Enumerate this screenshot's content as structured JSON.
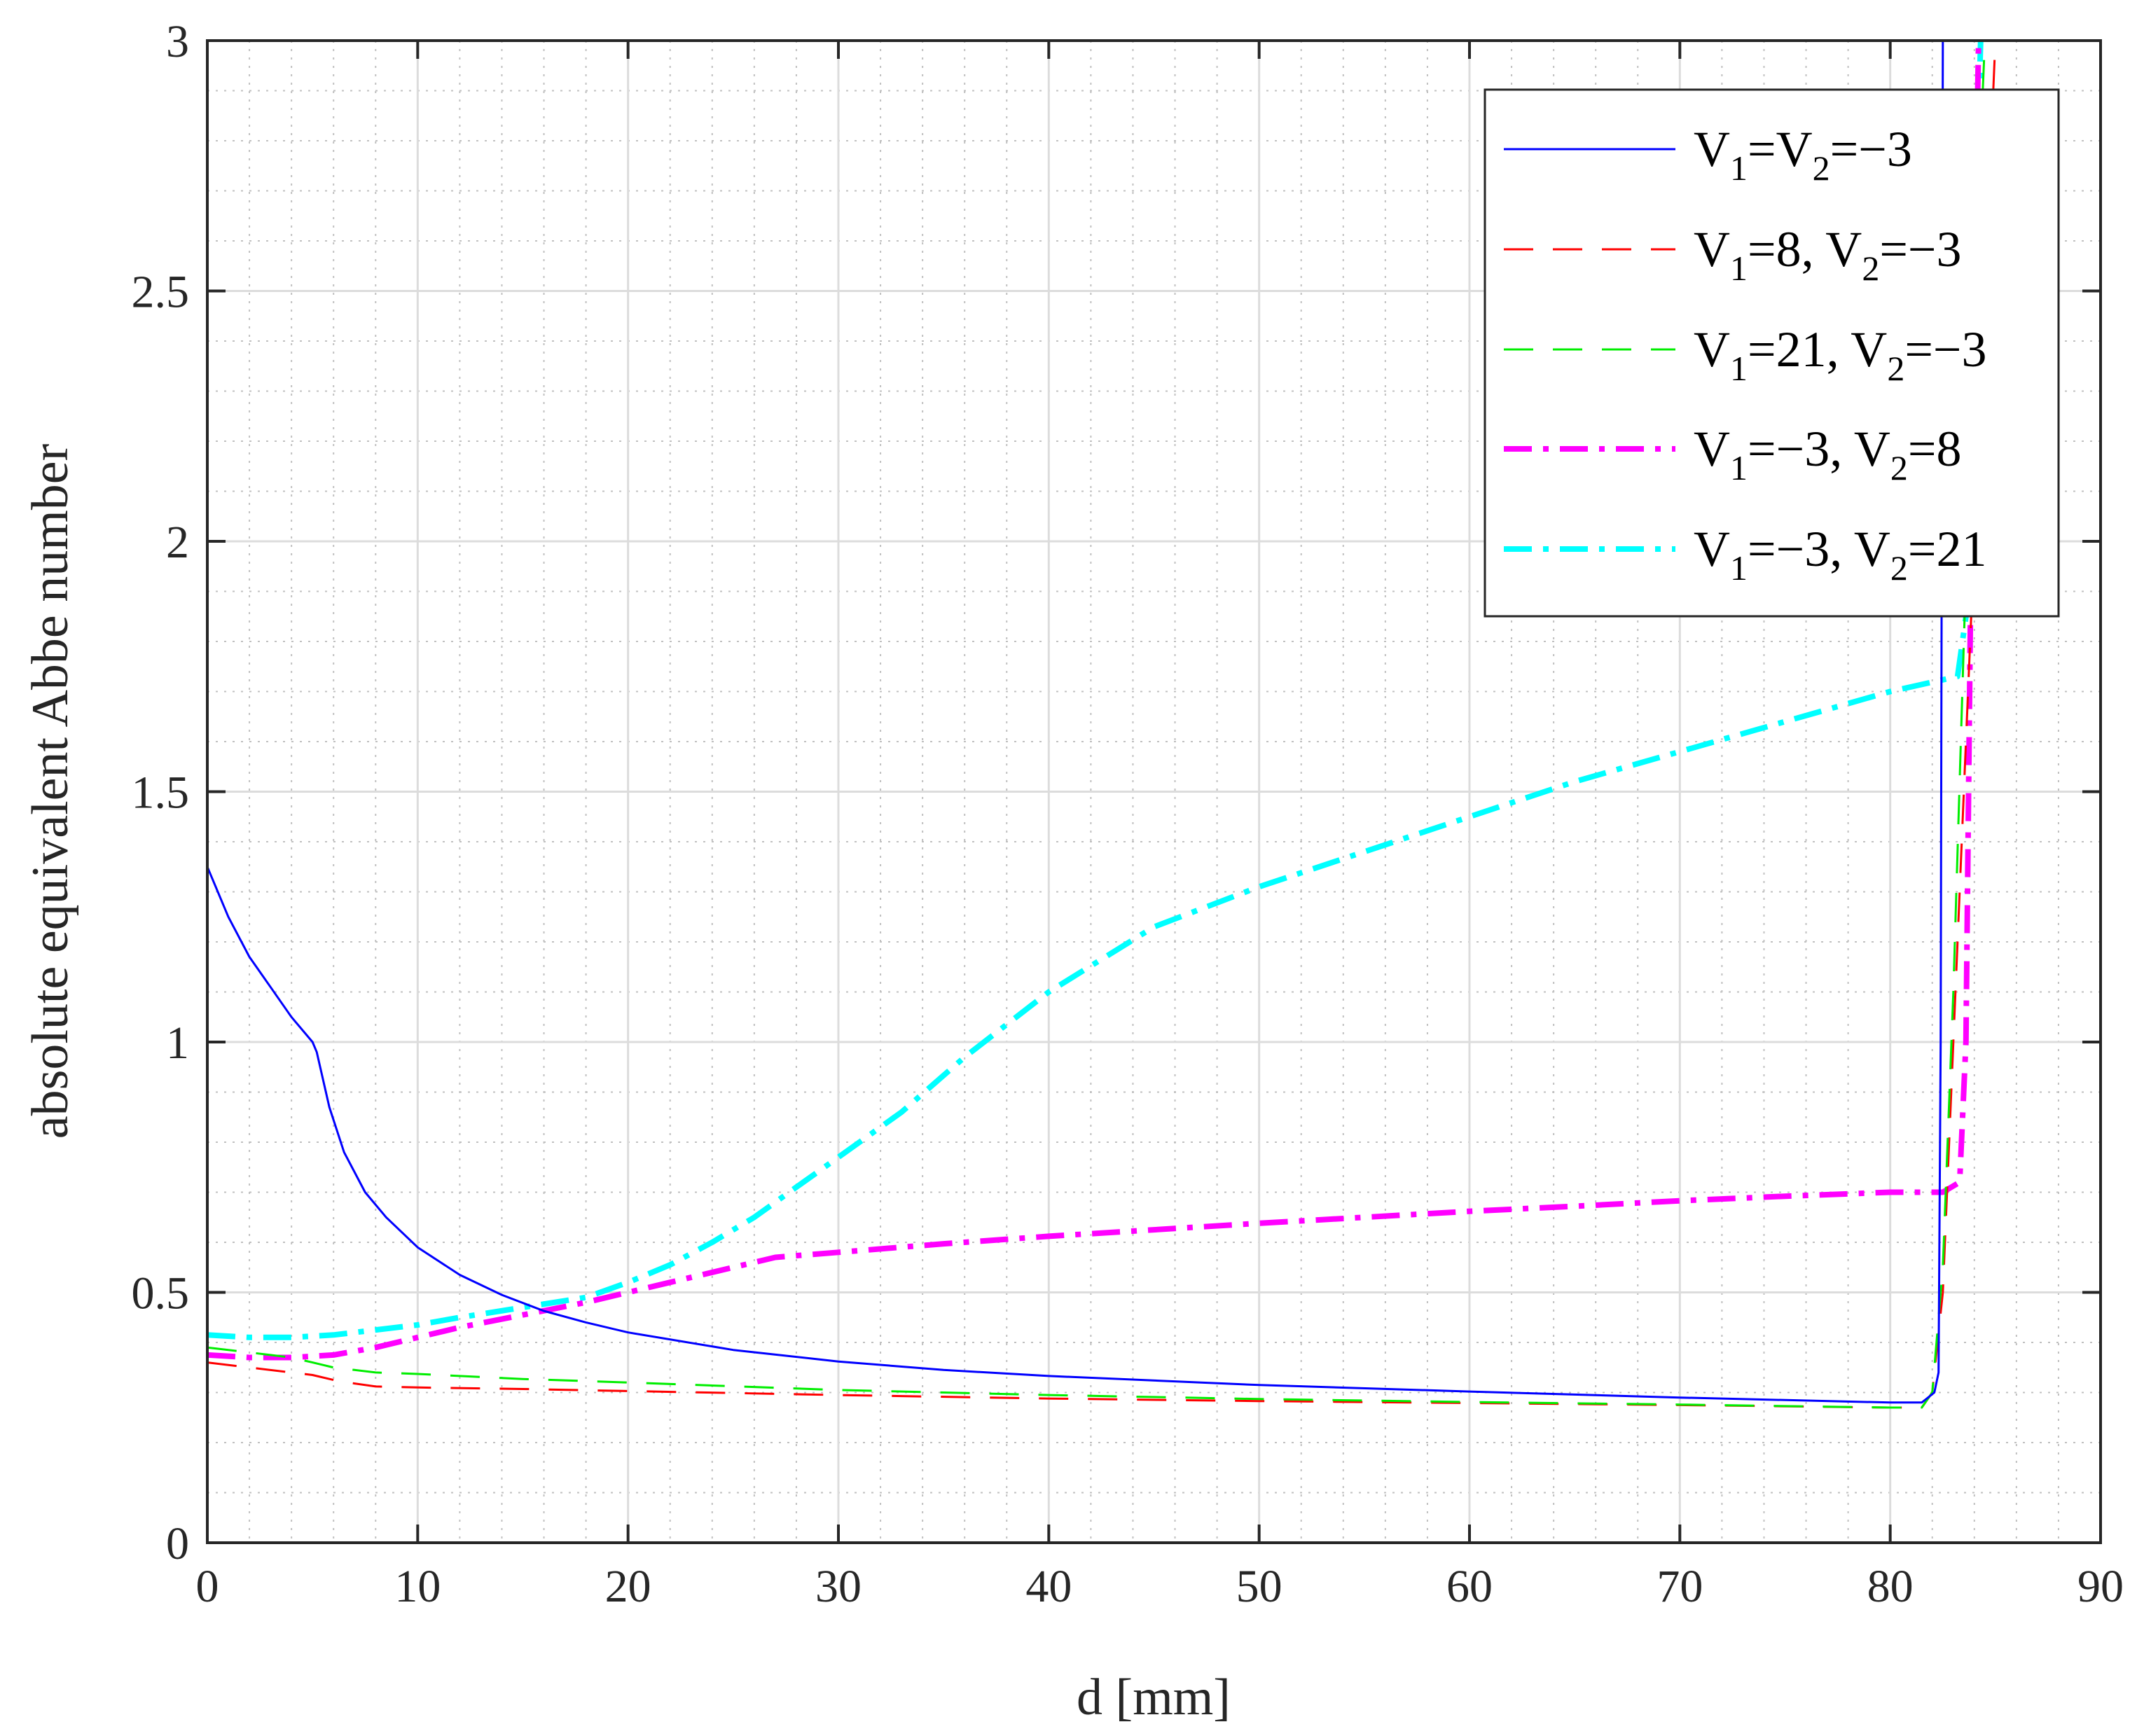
{
  "chart_data": {
    "type": "line",
    "xlabel": "d [mm]",
    "ylabel": "absolute equivalent Abbe number",
    "xlim": [
      0,
      90
    ],
    "ylim": [
      0,
      3
    ],
    "xticks": [
      "0",
      "10",
      "20",
      "30",
      "40",
      "50",
      "60",
      "70",
      "80",
      "90"
    ],
    "yticks": [
      "0",
      "0.5",
      "1",
      "1.5",
      "2",
      "2.5",
      "3"
    ],
    "grid": "major and minor",
    "legend_position": "top-right",
    "series": [
      {
        "name": "V1=V2=−3",
        "label_parts": [
          [
            "V",
            "1",
            "=V"
          ],
          [
            "",
            "2",
            "=−3"
          ]
        ],
        "color": "#0000ff",
        "style": "solid",
        "x": [
          0,
          1,
          2,
          3,
          4,
          5,
          5.2,
          5.8,
          6.5,
          7.5,
          8.5,
          10,
          12,
          14,
          16,
          18,
          20,
          25,
          30,
          35,
          40,
          50,
          60,
          70,
          80,
          81.5,
          82.1,
          82.3,
          82.4,
          82.5
        ],
        "y": [
          1.35,
          1.25,
          1.17,
          1.11,
          1.05,
          1.0,
          0.98,
          0.87,
          0.78,
          0.7,
          0.65,
          0.59,
          0.535,
          0.495,
          0.463,
          0.44,
          0.42,
          0.385,
          0.362,
          0.345,
          0.333,
          0.315,
          0.302,
          0.29,
          0.28,
          0.28,
          0.3,
          0.34,
          1.0,
          3.0
        ]
      },
      {
        "name": "V1=8, V2=−3",
        "label_parts": [
          [
            "V",
            "1",
            "=8, V"
          ],
          [
            "",
            "2",
            "=−3"
          ]
        ],
        "color": "#ff0000",
        "style": "dashed",
        "x": [
          0,
          2,
          4,
          5,
          6,
          7,
          8,
          10,
          15,
          20,
          30,
          40,
          50,
          60,
          70,
          80,
          81.5,
          82,
          82.5,
          83,
          83.5,
          84,
          84.5,
          85
        ],
        "y": [
          0.36,
          0.35,
          0.34,
          0.335,
          0.325,
          0.318,
          0.312,
          0.31,
          0.307,
          0.303,
          0.295,
          0.288,
          0.283,
          0.279,
          0.275,
          0.27,
          0.27,
          0.3,
          0.5,
          1.0,
          1.5,
          2.0,
          2.5,
          3.0
        ]
      },
      {
        "name": "V1=21, V2=−3",
        "label_parts": [
          [
            "V",
            "1",
            "=21, V"
          ],
          [
            "",
            "2",
            "=−3"
          ]
        ],
        "color": "#00ee00",
        "style": "dashed",
        "x": [
          0,
          2,
          4,
          5,
          6,
          7,
          8,
          10,
          15,
          20,
          30,
          40,
          50,
          60,
          70,
          80,
          81.5,
          82,
          82.5,
          83,
          83.5,
          84,
          84.5
        ],
        "y": [
          0.39,
          0.38,
          0.37,
          0.36,
          0.35,
          0.345,
          0.34,
          0.337,
          0.327,
          0.32,
          0.305,
          0.295,
          0.287,
          0.281,
          0.276,
          0.27,
          0.27,
          0.3,
          0.55,
          1.1,
          1.8,
          2.5,
          3.0
        ]
      },
      {
        "name": "V1=−3, V2=8",
        "label_parts": [
          [
            "V",
            "1",
            "=−3, V"
          ],
          [
            "",
            "2",
            "=8"
          ]
        ],
        "color": "#ff00ff",
        "style": "dashdot-thick",
        "x": [
          0,
          2,
          4,
          6,
          8,
          10,
          12,
          15,
          18,
          20,
          22,
          25,
          27,
          30,
          35,
          40,
          45,
          50,
          55,
          60,
          65,
          70,
          75,
          80,
          82.5,
          83.3,
          83.6,
          83.8,
          84,
          84.2
        ],
        "y": [
          0.375,
          0.37,
          0.37,
          0.375,
          0.39,
          0.41,
          0.43,
          0.455,
          0.48,
          0.5,
          0.52,
          0.55,
          0.57,
          0.58,
          0.597,
          0.612,
          0.625,
          0.638,
          0.65,
          0.662,
          0.672,
          0.683,
          0.692,
          0.7,
          0.7,
          0.72,
          1.0,
          1.8,
          2.5,
          3.0
        ]
      },
      {
        "name": "V1=−3, V2=21",
        "label_parts": [
          [
            "V",
            "1",
            "=−3, V"
          ],
          [
            "",
            "2",
            "=21"
          ]
        ],
        "color": "#00ffff",
        "style": "dashdot-thick",
        "x": [
          0,
          2,
          4,
          6,
          8,
          10,
          12,
          15,
          18,
          20,
          22,
          24,
          26,
          28,
          30,
          33,
          36,
          40,
          45,
          50,
          55,
          60,
          65,
          70,
          75,
          80,
          83.2,
          83.6,
          83.9,
          84.1,
          84.3
        ],
        "y": [
          0.415,
          0.41,
          0.41,
          0.415,
          0.425,
          0.435,
          0.45,
          0.47,
          0.49,
          0.52,
          0.555,
          0.6,
          0.65,
          0.71,
          0.77,
          0.86,
          0.97,
          1.1,
          1.23,
          1.31,
          1.38,
          1.45,
          1.52,
          1.58,
          1.64,
          1.7,
          1.73,
          1.85,
          2.3,
          2.7,
          3.0
        ]
      }
    ]
  }
}
